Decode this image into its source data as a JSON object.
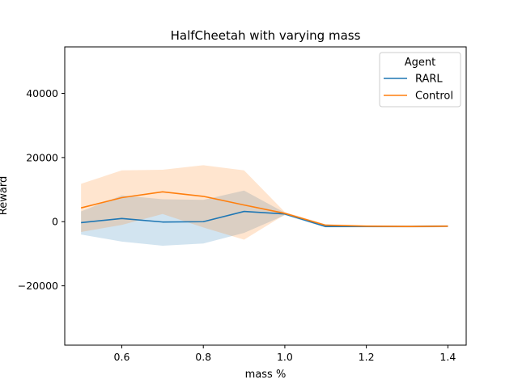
{
  "chart_data": {
    "type": "line",
    "title": "HalfCheetah with varying mass",
    "xlabel": "mass %",
    "ylabel": "Reward",
    "xlim": [
      0.46,
      1.445
    ],
    "ylim": [
      -38500,
      54500
    ],
    "x_ticks": [
      0.6,
      0.8,
      1.0,
      1.2,
      1.4
    ],
    "x_tick_labels": [
      "0.6",
      "0.8",
      "1.0",
      "1.2",
      "1.4"
    ],
    "y_ticks": [
      -20000,
      0,
      20000,
      40000
    ],
    "y_tick_labels": [
      "−20000",
      "0",
      "20000",
      "40000"
    ],
    "grid": false,
    "x": [
      0.5,
      0.6,
      0.7,
      0.8,
      0.9,
      1.0,
      1.1,
      1.2,
      1.3,
      1.4
    ],
    "legend": {
      "title": "Agent",
      "placement": "upper right"
    },
    "series": [
      {
        "name": "RARL",
        "color": "#1f77b4",
        "values": [
          -300,
          1000,
          -100,
          0,
          3200,
          2400,
          -1500,
          -1500,
          -1500,
          -1400
        ],
        "band_lower": [
          -4000,
          -6200,
          -7500,
          -6800,
          -3500,
          2000,
          -1800,
          -1800,
          -1800,
          -1700
        ],
        "band_upper": [
          3200,
          8200,
          7000,
          6800,
          9700,
          2800,
          -1200,
          -1200,
          -1200,
          -1100
        ]
      },
      {
        "name": "Control",
        "color": "#ff7f0e",
        "values": [
          4300,
          7500,
          9300,
          7900,
          5200,
          2600,
          -1100,
          -1400,
          -1500,
          -1400
        ],
        "band_lower": [
          -3200,
          -1000,
          2400,
          -1800,
          -5600,
          2200,
          -1500,
          -1700,
          -1800,
          -1700
        ],
        "band_upper": [
          11800,
          16000,
          16200,
          17600,
          16000,
          3000,
          -800,
          -1100,
          -1200,
          -1100
        ]
      }
    ]
  }
}
